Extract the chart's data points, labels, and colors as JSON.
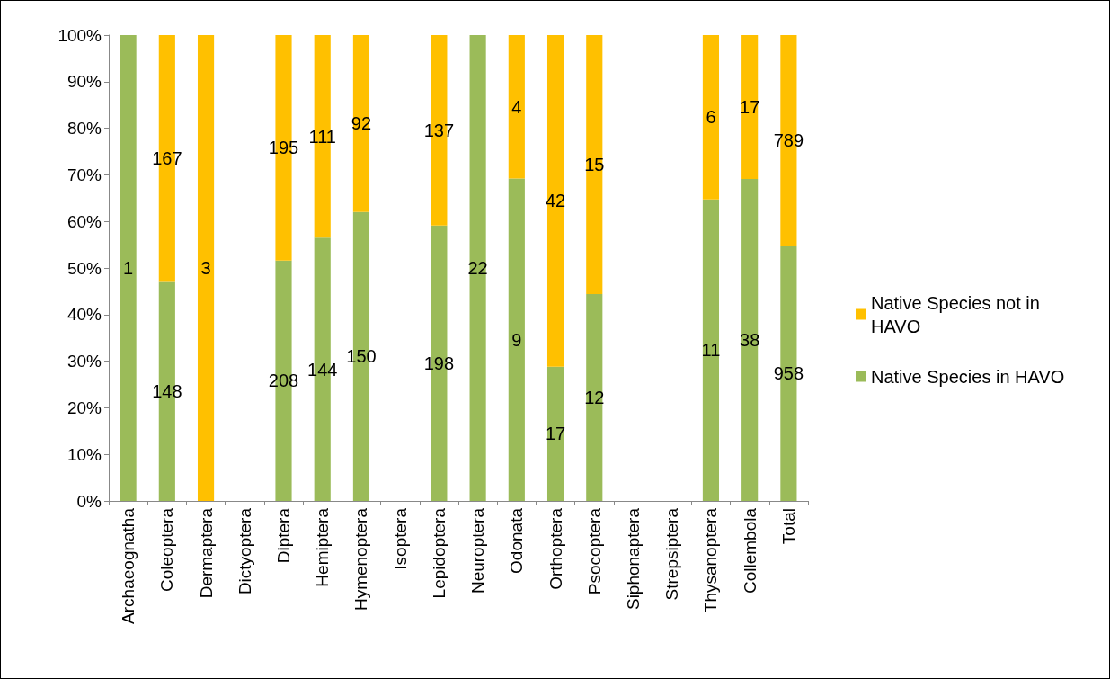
{
  "chart_data": {
    "type": "bar",
    "stacked": true,
    "categories": [
      "Archaeognatha",
      "Coleoptera",
      "Dermaptera",
      "Dictyoptera",
      "Diptera",
      "Hemiptera",
      "Hymenoptera",
      "Isoptera",
      "Lepidoptera",
      "Neuroptera",
      "Odonata",
      "Orthoptera",
      "Psocoptera",
      "Siphonaptera",
      "Strepsiptera",
      "Thysanoptera",
      "Collembola",
      "Total"
    ],
    "series": [
      {
        "name": "Native Species in HAVO",
        "color": "#9bbb59",
        "values": [
          100,
          47.0,
          0,
          null,
          51.6,
          56.5,
          62.0,
          null,
          59.1,
          100,
          69.2,
          28.8,
          44.4,
          null,
          null,
          64.7,
          69.1,
          54.8
        ]
      },
      {
        "name": "Native Species not in HAVO",
        "color": "#ffc000",
        "values": [
          0,
          53.0,
          100,
          null,
          48.4,
          43.5,
          38.0,
          null,
          40.9,
          0,
          30.8,
          71.2,
          55.6,
          null,
          null,
          35.3,
          30.9,
          45.2
        ]
      }
    ],
    "annotations": [
      "1",
      "148",
      "208",
      "144",
      "150",
      "198",
      "22",
      "9",
      "17",
      "12",
      "11",
      "38",
      "958",
      "167",
      "3",
      "195",
      "111",
      "92",
      "137",
      "4",
      "42",
      "15",
      "6",
      "17",
      "789"
    ],
    "ylim": [
      0,
      100
    ],
    "yticks": [
      {
        "value": 0,
        "label": "0%"
      },
      {
        "value": 10,
        "label": "10%"
      },
      {
        "value": 20,
        "label": "20%"
      },
      {
        "value": 30,
        "label": "30%"
      },
      {
        "value": 40,
        "label": "40%"
      },
      {
        "value": 50,
        "label": "50%"
      },
      {
        "value": 60,
        "label": "60%"
      },
      {
        "value": 70,
        "label": "70%"
      },
      {
        "value": 80,
        "label": "80%"
      },
      {
        "value": 90,
        "label": "90%"
      },
      {
        "value": 100,
        "label": "100%"
      }
    ],
    "grid": false,
    "legend": "right"
  }
}
